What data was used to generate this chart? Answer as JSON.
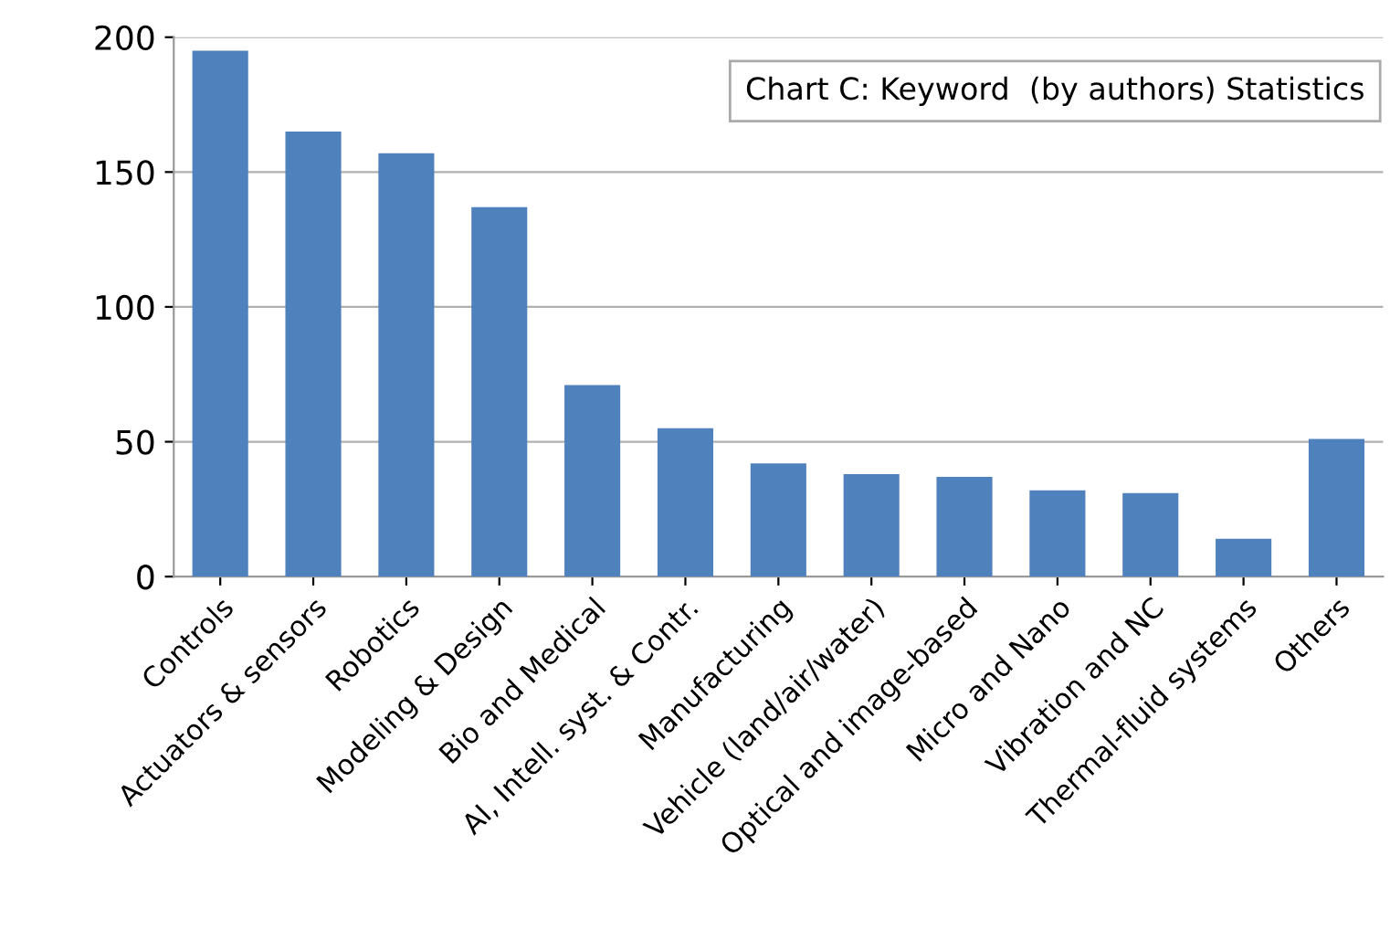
{
  "chart_data": {
    "type": "bar",
    "title": "Chart C: Keyword  (by authors) Statistics",
    "categories": [
      "Controls",
      "Actuators & sensors",
      "Robotics",
      "Modeling & Design",
      "Bio and Medical",
      "AI, Intell. syst. & Contr.",
      "Manufacturing",
      "Vehicle (land/air/water)",
      "Optical and image-based",
      "Micro and Nano",
      "Vibration and NC",
      "Thermal-fluid systems",
      "Others"
    ],
    "values": [
      195,
      165,
      157,
      137,
      71,
      55,
      42,
      38,
      37,
      32,
      31,
      14,
      51
    ],
    "color": "#4f81bd",
    "ylim": [
      0,
      200
    ],
    "yticks": [
      0,
      50,
      100,
      150,
      200
    ],
    "grid": "y"
  }
}
